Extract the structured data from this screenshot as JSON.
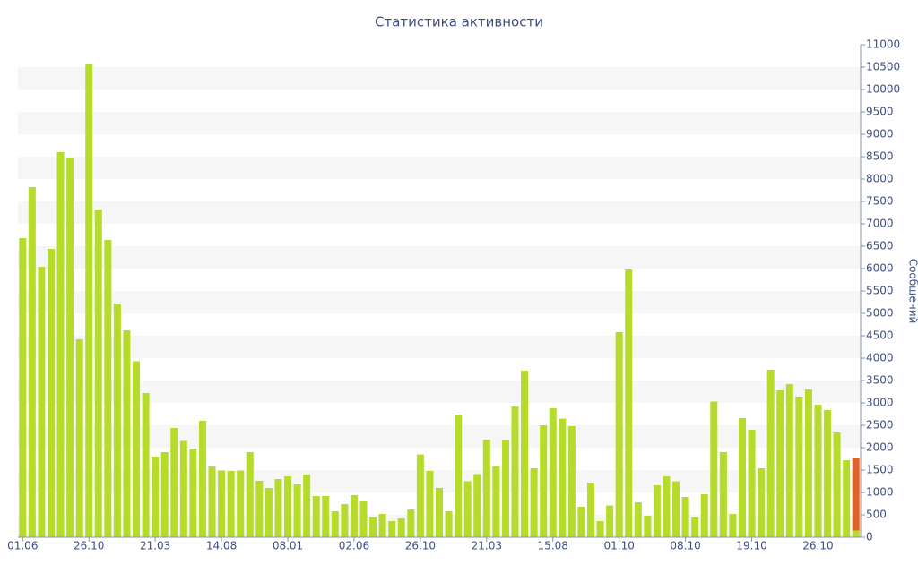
{
  "chart_data": {
    "type": "bar",
    "stacked": true,
    "title": "Статистика активности",
    "y_label": "Сообщений",
    "categories": [
      "01.06",
      null,
      null,
      null,
      null,
      null,
      null,
      "26.10",
      null,
      null,
      null,
      null,
      null,
      null,
      "21.03",
      null,
      null,
      null,
      null,
      null,
      null,
      "14.08",
      null,
      null,
      null,
      null,
      null,
      null,
      "08.01",
      null,
      null,
      null,
      null,
      null,
      null,
      "02.06",
      null,
      null,
      null,
      null,
      null,
      null,
      "26.10",
      null,
      null,
      null,
      null,
      null,
      null,
      "21.03",
      null,
      null,
      null,
      null,
      null,
      null,
      "15.08",
      null,
      null,
      null,
      null,
      null,
      null,
      "01.10",
      null,
      null,
      null,
      null,
      null,
      null,
      "08.10",
      null,
      null,
      null,
      null,
      null,
      null,
      "19.10",
      null,
      null,
      null,
      null,
      null,
      null,
      "26.10",
      null,
      null,
      null,
      null
    ],
    "series": [
      {
        "color": "#b5dc2b",
        "values": [
          6680,
          7820,
          6040,
          6440,
          8600,
          8480,
          4420,
          10560,
          7320,
          6640,
          5220,
          4620,
          3930,
          3220,
          1800,
          1900,
          2440,
          2150,
          1980,
          2600,
          1580,
          1490,
          1480,
          1490,
          1900,
          1260,
          1100,
          1300,
          1360,
          1180,
          1400,
          920,
          920,
          580,
          740,
          940,
          800,
          440,
          520,
          360,
          420,
          620,
          1850,
          1480,
          1100,
          580,
          2740,
          1250,
          1410,
          2180,
          1590,
          2170,
          2920,
          3720,
          1540,
          2500,
          2880,
          2650,
          2480,
          680,
          1220,
          360,
          710,
          4580,
          5980,
          780,
          480,
          1160,
          1360,
          1250,
          900,
          440,
          960,
          3030,
          1900,
          520,
          2660,
          2400,
          1540,
          3740,
          3280,
          3420,
          3140,
          3300,
          2960,
          2840,
          2340,
          1720,
          150
        ]
      },
      {
        "color": "#e0622a",
        "values": [
          null,
          null,
          null,
          null,
          null,
          null,
          null,
          null,
          null,
          null,
          null,
          null,
          null,
          null,
          null,
          null,
          null,
          null,
          null,
          null,
          null,
          null,
          null,
          null,
          null,
          null,
          null,
          null,
          null,
          null,
          null,
          null,
          null,
          null,
          null,
          null,
          null,
          null,
          null,
          null,
          null,
          null,
          null,
          null,
          null,
          null,
          null,
          null,
          null,
          null,
          null,
          null,
          null,
          null,
          null,
          null,
          null,
          null,
          null,
          null,
          null,
          null,
          null,
          null,
          null,
          null,
          null,
          null,
          null,
          null,
          null,
          null,
          null,
          null,
          null,
          null,
          null,
          null,
          null,
          null,
          null,
          null,
          null,
          null,
          null,
          null,
          null,
          null,
          1610
        ]
      }
    ],
    "ylim": [
      0,
      11000
    ],
    "yticks": [
      0,
      500,
      1000,
      1500,
      2000,
      2500,
      3000,
      3500,
      4000,
      4500,
      5000,
      5500,
      6000,
      6500,
      7000,
      7500,
      8000,
      8500,
      9000,
      9500,
      10000,
      10500,
      11000
    ],
    "y_axis_side": "right",
    "grid": "bands"
  }
}
